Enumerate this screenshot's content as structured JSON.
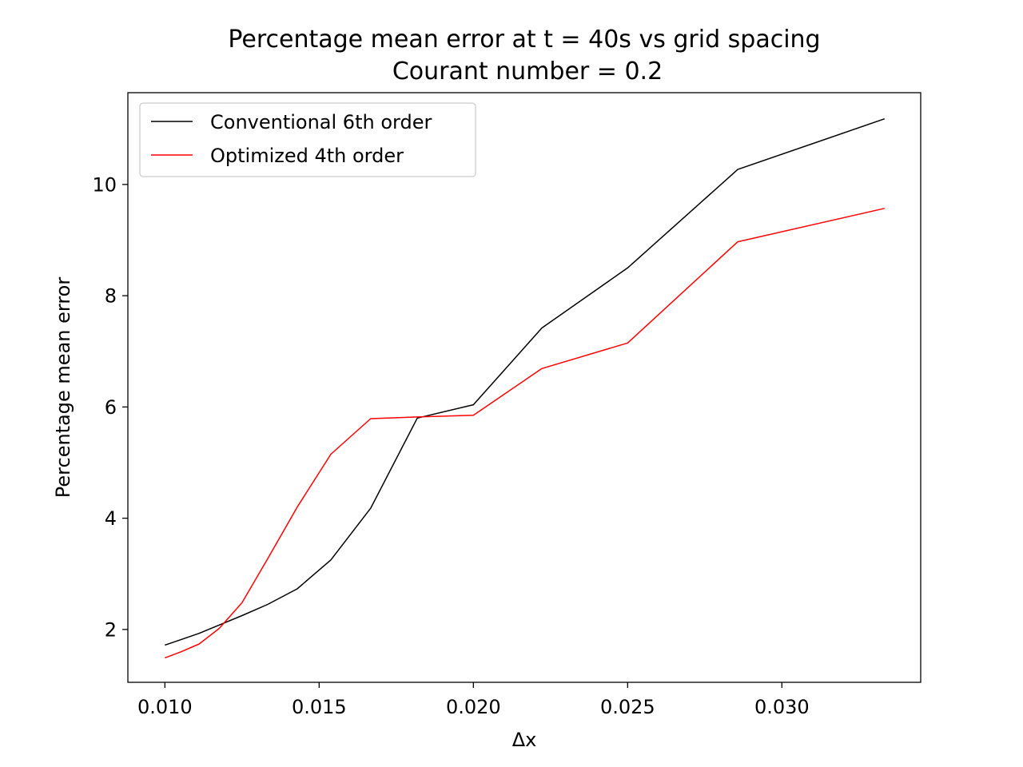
{
  "chart_data": {
    "type": "line",
    "title": "Percentage mean error at t = 40s vs grid spacing",
    "subtitle": "Courant number = 0.2",
    "xlabel": "Δx",
    "ylabel": "Percentage mean error",
    "xlim": [
      0.0088,
      0.0345
    ],
    "ylim": [
      1.05,
      11.65
    ],
    "xticks": [
      0.01,
      0.015,
      0.02,
      0.025,
      0.03
    ],
    "xtick_labels": [
      "0.010",
      "0.015",
      "0.020",
      "0.025",
      "0.030"
    ],
    "yticks": [
      2,
      4,
      6,
      8,
      10
    ],
    "ytick_labels": [
      "2",
      "4",
      "6",
      "8",
      "10"
    ],
    "grid": false,
    "legend_position": "top-left",
    "x": [
      0.01,
      0.01053,
      0.01111,
      0.01176,
      0.0125,
      0.01333,
      0.01429,
      0.01538,
      0.01667,
      0.01818,
      0.02,
      0.02222,
      0.025,
      0.02857,
      0.03333
    ],
    "series": [
      {
        "name": "Conventional 6th order",
        "color": "#000000",
        "values": [
          1.72,
          1.82,
          1.93,
          2.08,
          2.25,
          2.45,
          2.73,
          3.25,
          4.18,
          5.8,
          6.04,
          7.42,
          8.5,
          10.27,
          11.18
        ]
      },
      {
        "name": "Optimized 4th order",
        "color": "#ff0000",
        "values": [
          1.49,
          1.6,
          1.74,
          2.02,
          2.48,
          3.27,
          4.2,
          5.15,
          5.79,
          5.82,
          5.85,
          6.69,
          7.15,
          8.97,
          9.57
        ]
      }
    ]
  }
}
